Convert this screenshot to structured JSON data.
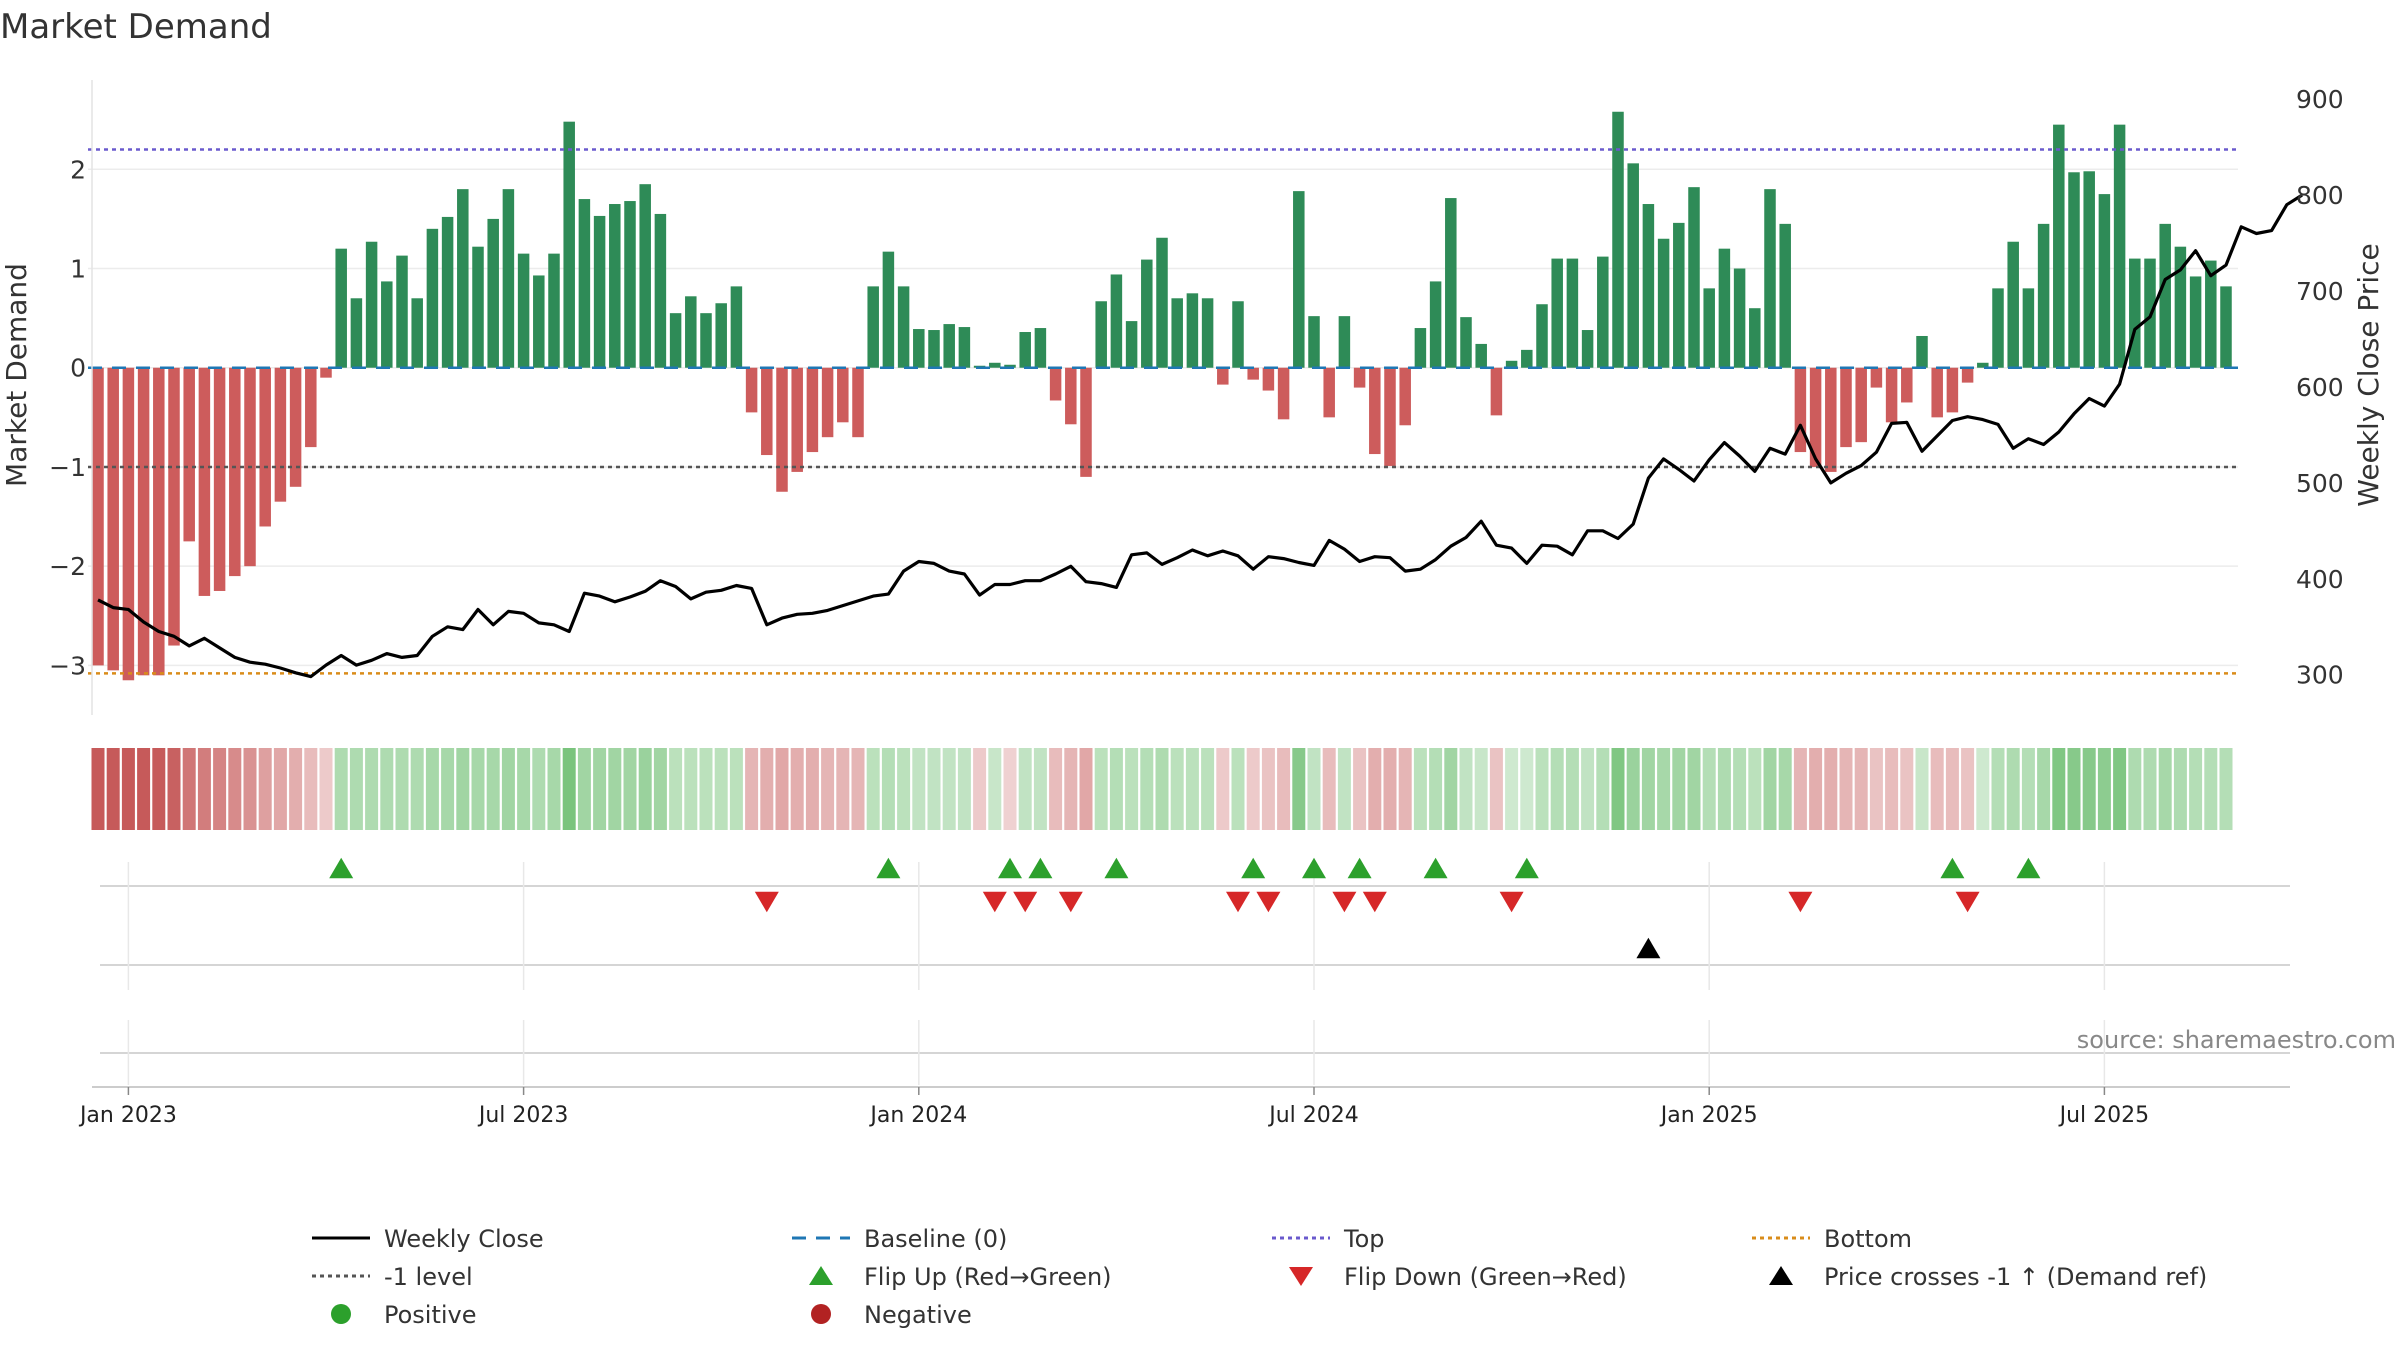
{
  "colors": {
    "positive_bar": "#2e8b57",
    "negative_bar": "#cd5c5c",
    "price_line": "#000000",
    "baseline": "#1f77b4",
    "top_line": "#6a5acd",
    "bottom_line": "#d98c1a",
    "minus_one_line": "#555555",
    "flip_up": "#2ca02c",
    "flip_down": "#d62728",
    "cross": "#000000",
    "positive_dot": "#2ca02c",
    "negative_dot": "#b22222"
  },
  "chart_data": {
    "type": "bar",
    "title": "Market Demand",
    "ylabel": "Market Demand",
    "y2label": "Weekly Close Price",
    "source": "source: sharemaestro.com",
    "ylim": [
      -3.5,
      2.9
    ],
    "y2lim": [
      258,
      920
    ],
    "yticks": [
      -3,
      -2,
      -1,
      0,
      1,
      2
    ],
    "ytick_labels": [
      "−3",
      "−2",
      "−1",
      "0",
      "1",
      "2"
    ],
    "y2ticks": [
      300,
      400,
      500,
      600,
      700,
      800,
      900
    ],
    "y2tick_labels": [
      "300",
      "400",
      "500",
      "600",
      "700",
      "800",
      "900"
    ],
    "xticks": [
      {
        "week": 2,
        "label": "Jan 2023"
      },
      {
        "week": 28,
        "label": "Jul 2023"
      },
      {
        "week": 54,
        "label": "Jan 2024"
      },
      {
        "week": 80,
        "label": "Jul 2024"
      },
      {
        "week": 106,
        "label": "Jan 2025"
      },
      {
        "week": 132,
        "label": "Jul 2025"
      }
    ],
    "top_level": 2.2,
    "bottom_level": -3.08,
    "minus_one_level": -1,
    "demand": [
      -3.0,
      -3.05,
      -3.15,
      -3.1,
      -3.1,
      -2.8,
      -1.75,
      -2.3,
      -2.25,
      -2.1,
      -2.0,
      -1.6,
      -1.35,
      -1.2,
      -0.8,
      -0.1,
      1.2,
      0.7,
      1.27,
      0.87,
      1.13,
      0.7,
      1.4,
      1.52,
      1.8,
      1.22,
      1.5,
      1.8,
      1.15,
      0.93,
      1.15,
      2.48,
      1.7,
      1.53,
      1.65,
      1.68,
      1.85,
      1.55,
      0.55,
      0.72,
      0.55,
      0.65,
      0.82,
      -0.45,
      -0.88,
      -1.25,
      -1.05,
      -0.85,
      -0.7,
      -0.55,
      -0.7,
      0.82,
      1.17,
      0.82,
      0.39,
      0.38,
      0.44,
      0.41,
      0.02,
      0.05,
      0.03,
      0.36,
      0.4,
      -0.33,
      -0.57,
      -1.1,
      0.67,
      0.94,
      0.47,
      1.09,
      1.31,
      0.7,
      0.75,
      0.7,
      -0.17,
      0.67,
      -0.12,
      -0.23,
      -0.52,
      1.78,
      0.52,
      -0.5,
      0.52,
      -0.2,
      -0.87,
      -0.99,
      -0.58,
      0.4,
      0.87,
      1.71,
      0.51,
      0.24,
      -0.48,
      0.07,
      0.18,
      0.64,
      1.1,
      1.1,
      0.38,
      1.12,
      2.58,
      2.06,
      1.65,
      1.3,
      1.46,
      1.82,
      0.8,
      1.2,
      1.0,
      0.6,
      1.8,
      1.45,
      -0.85,
      -1.0,
      -1.05,
      -0.8,
      -0.75,
      -0.2,
      -0.55,
      -0.35,
      0.32,
      -0.5,
      -0.45,
      -0.15,
      0.05,
      0.8,
      1.27,
      0.8,
      1.45,
      2.45,
      1.97,
      1.98,
      1.75,
      2.45,
      1.1,
      1.1,
      1.45,
      1.22,
      0.92,
      1.08,
      0.82
    ],
    "price": [
      378,
      370,
      368,
      355,
      345,
      340,
      330,
      338,
      328,
      318,
      313,
      311,
      307,
      302,
      298,
      310,
      320,
      310,
      315,
      322,
      318,
      320,
      340,
      350,
      347,
      368,
      352,
      366,
      364,
      354,
      352,
      345,
      385,
      382,
      376,
      381,
      387,
      398,
      392,
      379,
      386,
      388,
      393,
      390,
      352,
      359,
      363,
      364,
      367,
      372,
      377,
      382,
      384,
      408,
      418,
      416,
      408,
      405,
      383,
      394,
      394,
      398,
      398,
      405,
      413,
      397,
      395,
      391,
      425,
      427,
      415,
      422,
      430,
      424,
      429,
      424,
      410,
      423,
      421,
      417,
      414,
      440,
      431,
      418,
      423,
      422,
      408,
      410,
      420,
      434,
      443,
      460,
      435,
      432,
      416,
      435,
      434,
      425,
      450,
      450,
      442,
      457,
      505,
      525,
      514,
      502,
      524,
      542,
      528,
      512,
      536,
      530,
      560,
      525,
      500,
      510,
      518,
      532,
      562,
      563,
      533,
      549,
      565,
      569,
      566,
      561,
      536,
      546,
      540,
      553,
      572,
      588,
      580,
      603,
      660,
      673,
      712,
      722,
      742,
      716,
      727,
      767,
      760,
      763,
      790,
      800
    ],
    "heat": [
      -1.0,
      -1.0,
      -1.0,
      -1.0,
      -1.0,
      -0.95,
      -0.8,
      -0.75,
      -0.7,
      -0.65,
      -0.6,
      -0.5,
      -0.45,
      -0.4,
      -0.3,
      -0.2,
      0.45,
      0.45,
      0.45,
      0.45,
      0.45,
      0.45,
      0.5,
      0.5,
      0.55,
      0.5,
      0.5,
      0.55,
      0.5,
      0.45,
      0.5,
      0.85,
      0.55,
      0.55,
      0.55,
      0.55,
      0.6,
      0.55,
      0.35,
      0.35,
      0.35,
      0.35,
      0.35,
      -0.35,
      -0.4,
      -0.45,
      -0.4,
      -0.4,
      -0.35,
      -0.35,
      -0.35,
      0.35,
      0.4,
      0.35,
      0.3,
      0.3,
      0.3,
      0.3,
      -0.2,
      0.25,
      -0.15,
      0.3,
      0.3,
      -0.3,
      -0.35,
      -0.45,
      0.35,
      0.4,
      0.35,
      0.4,
      0.45,
      0.35,
      0.35,
      0.35,
      -0.2,
      0.35,
      -0.2,
      -0.25,
      -0.3,
      0.75,
      0.3,
      -0.3,
      0.3,
      -0.25,
      -0.4,
      -0.4,
      -0.35,
      0.35,
      0.4,
      0.55,
      0.3,
      0.25,
      -0.25,
      0.2,
      0.2,
      0.35,
      0.4,
      0.4,
      0.3,
      0.4,
      0.8,
      0.6,
      0.55,
      0.5,
      0.55,
      0.55,
      0.4,
      0.45,
      0.4,
      0.35,
      0.55,
      0.5,
      -0.35,
      -0.4,
      -0.4,
      -0.35,
      -0.35,
      -0.25,
      -0.3,
      -0.25,
      0.25,
      -0.3,
      -0.3,
      -0.25,
      0.2,
      0.4,
      0.45,
      0.4,
      0.5,
      0.8,
      0.75,
      0.75,
      0.7,
      0.8,
      0.45,
      0.45,
      0.5,
      0.45,
      0.4,
      0.4,
      0.4
    ],
    "flip_up_weeks": [
      16,
      52,
      60,
      62,
      67,
      76,
      80,
      83,
      88,
      94,
      122,
      127
    ],
    "flip_down_weeks": [
      44,
      59,
      61,
      64,
      75,
      77,
      82,
      84,
      93,
      112,
      123
    ],
    "cross_weeks": [
      102
    ],
    "legend": {
      "weekly_close": "Weekly Close",
      "baseline": "Baseline (0)",
      "top": "Top",
      "bottom": "Bottom",
      "minus_one": "-1 level",
      "flip_up": "Flip Up (Red→Green)",
      "flip_down": "Flip Down (Green→Red)",
      "cross": "Price crosses -1 ↑ (Demand ref)",
      "positive": "Positive",
      "negative": "Negative"
    }
  }
}
